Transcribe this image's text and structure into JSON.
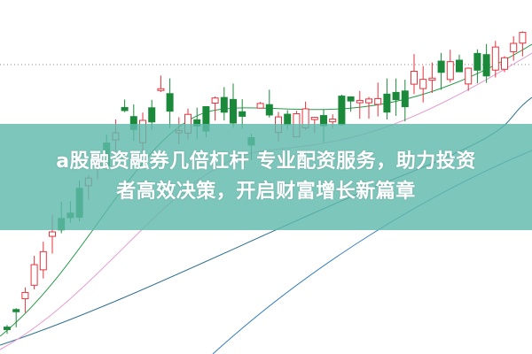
{
  "banner": {
    "line1": "a股融资融券几倍杠杆 专业配资服务，助力投资",
    "line2": "者高效决策，开启财富增长新篇章",
    "background": "#7fc8bd",
    "text_color": "#ffffff"
  },
  "chart": {
    "type": "candlestick",
    "up_color": "#e8323c",
    "down_color": "#1a8a3a",
    "ma_colors": [
      "#2a6f8f",
      "#e59bd0",
      "#2a9a4a",
      "#3a7fbf"
    ]
  }
}
